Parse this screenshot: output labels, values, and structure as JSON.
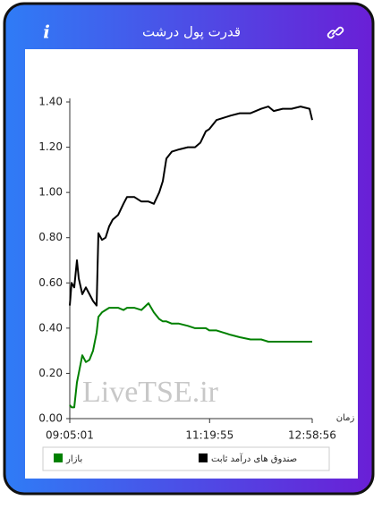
{
  "chart_data": {
    "type": "line",
    "title": "قدرت پول درشت",
    "x_label": "زمان",
    "watermark": "LiveTSE.ir",
    "x": [
      "09:05:01",
      "09:06:45",
      "09:09:20",
      "09:11:55",
      "09:13:39",
      "09:17:06",
      "09:20:33",
      "09:24:00",
      "09:27:28",
      "09:30:55",
      "09:32:38",
      "09:36:05",
      "09:39:33",
      "09:43:00",
      "09:46:27",
      "09:51:38",
      "09:56:48",
      "10:00:16",
      "10:07:10",
      "10:14:04",
      "10:20:59",
      "10:26:09",
      "10:31:20",
      "10:34:47",
      "10:38:14",
      "10:43:25",
      "10:50:19",
      "10:58:57",
      "11:05:51",
      "11:11:02",
      "11:16:13",
      "11:19:40",
      "11:26:35",
      "11:33:29",
      "11:40:23",
      "11:49:01",
      "11:59:23",
      "12:09:44",
      "12:16:38",
      "12:21:49",
      "12:30:27",
      "12:39:01",
      "12:47:43",
      "12:56:21",
      "12:58:56"
    ],
    "series": [
      {
        "name": "صندوق های درآمد ثابت",
        "color": "#000000",
        "values": [
          0.5,
          0.6,
          0.58,
          0.7,
          0.62,
          0.55,
          0.58,
          0.55,
          0.52,
          0.5,
          0.82,
          0.79,
          0.8,
          0.85,
          0.88,
          0.9,
          0.95,
          0.98,
          0.98,
          0.96,
          0.96,
          0.95,
          1.0,
          1.05,
          1.15,
          1.18,
          1.19,
          1.2,
          1.2,
          1.22,
          1.27,
          1.28,
          1.32,
          1.33,
          1.34,
          1.35,
          1.35,
          1.37,
          1.38,
          1.36,
          1.37,
          1.37,
          1.38,
          1.37,
          1.32
        ]
      },
      {
        "name": "بازار",
        "color": "#008000",
        "values": [
          0.06,
          0.05,
          0.05,
          0.16,
          0.2,
          0.28,
          0.25,
          0.26,
          0.3,
          0.38,
          0.45,
          0.47,
          0.48,
          0.49,
          0.49,
          0.49,
          0.48,
          0.49,
          0.49,
          0.48,
          0.51,
          0.47,
          0.44,
          0.43,
          0.43,
          0.42,
          0.42,
          0.41,
          0.4,
          0.4,
          0.4,
          0.39,
          0.39,
          0.38,
          0.37,
          0.36,
          0.35,
          0.35,
          0.34,
          0.34,
          0.34,
          0.34,
          0.34,
          0.34,
          0.34
        ]
      }
    ],
    "xlim": [
      "09:05:01",
      "12:58:56"
    ],
    "xticks": [
      "09:05:01",
      "11:19:55",
      "12:58:56"
    ],
    "ylim": [
      0,
      1.4
    ],
    "yticks": [
      {
        "value": 0,
        "label": "0.00"
      },
      {
        "value": 0.2,
        "label": "0.20"
      },
      {
        "value": 0.4,
        "label": "0.40"
      },
      {
        "value": 0.6,
        "label": "0.60"
      },
      {
        "value": 0.8,
        "label": "0.80"
      },
      {
        "value": 1,
        "label": "1.00"
      },
      {
        "value": 1.2,
        "label": "1.20"
      },
      {
        "value": 1.4,
        "label": "1.40"
      }
    ],
    "grid": false
  }
}
